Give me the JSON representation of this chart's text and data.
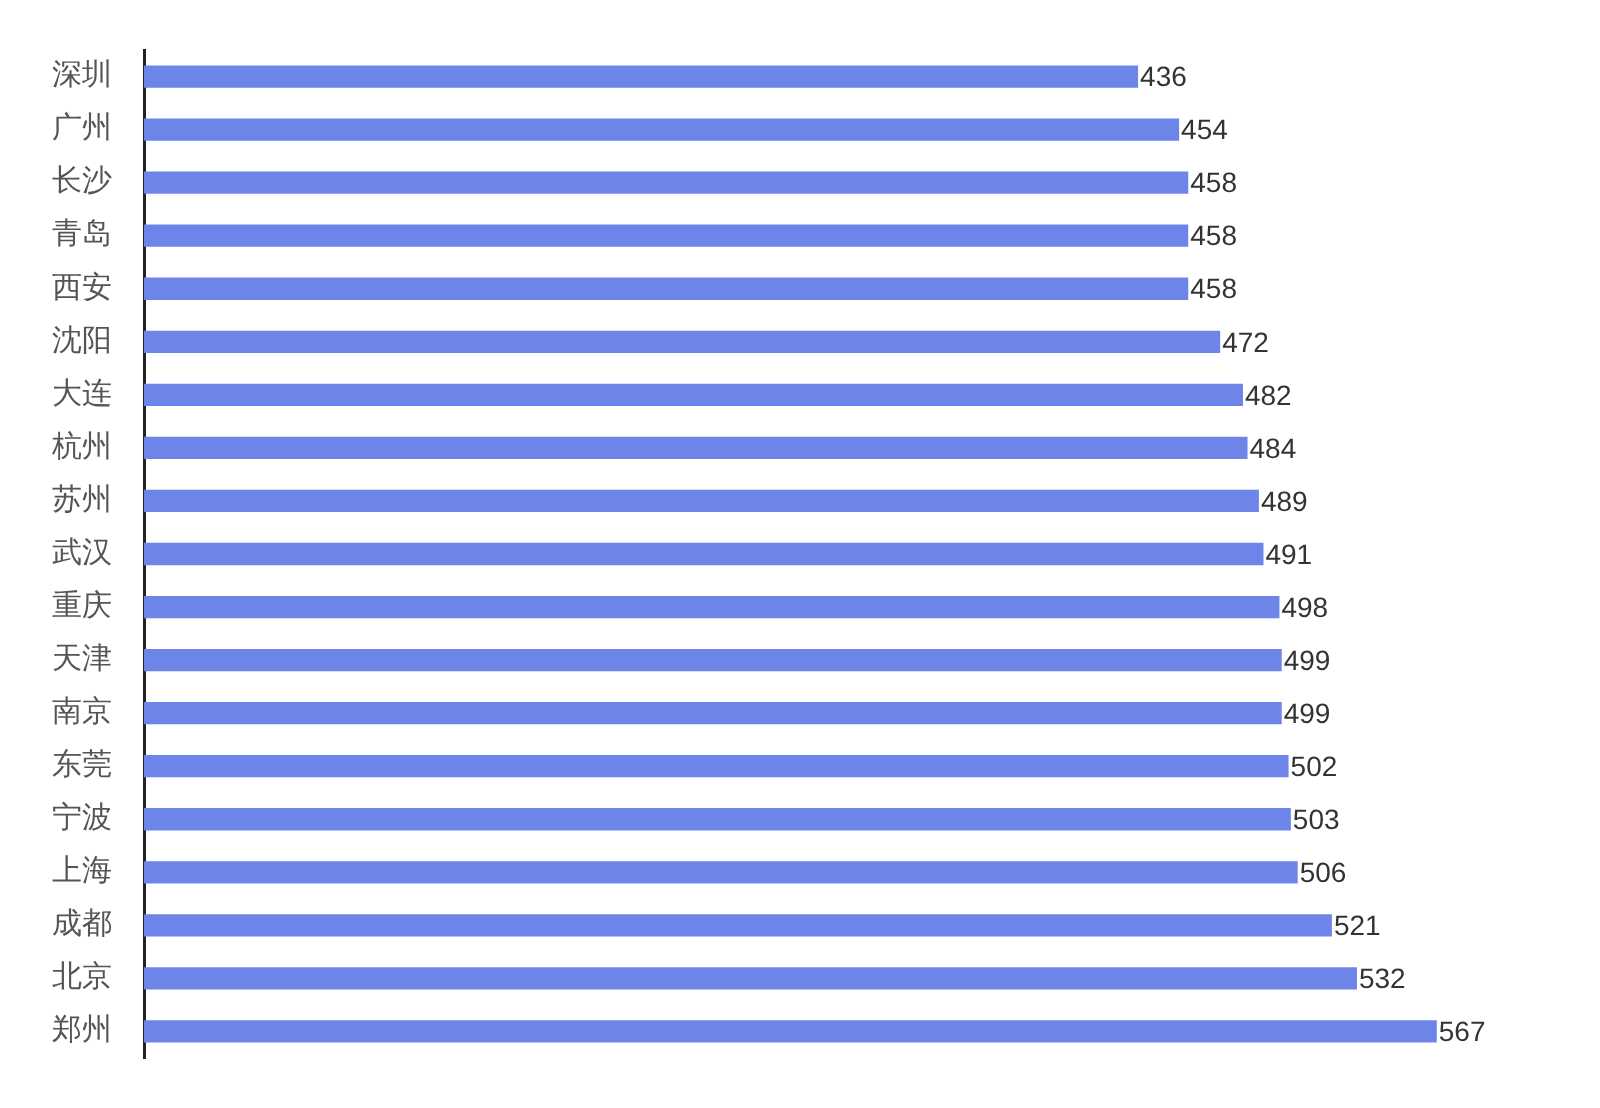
{
  "chart_data": {
    "type": "bar",
    "orientation": "horizontal",
    "categories": [
      "深圳",
      "广州",
      "长沙",
      "青岛",
      "西安",
      "沈阳",
      "大连",
      "杭州",
      "苏州",
      "武汉",
      "重庆",
      "天津",
      "南京",
      "东莞",
      "宁波",
      "上海",
      "成都",
      "北京",
      "郑州"
    ],
    "values": [
      436,
      454,
      458,
      458,
      458,
      472,
      482,
      484,
      489,
      491,
      498,
      499,
      499,
      502,
      503,
      506,
      521,
      532,
      567
    ],
    "color": "#6d85e8",
    "data_labels": true
  }
}
